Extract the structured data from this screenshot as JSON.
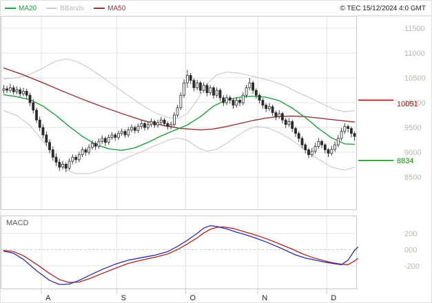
{
  "legend": {
    "ma20_label": "MA20",
    "bbands_label": "BBands",
    "ma50_label": "MA50"
  },
  "copyright": "© TEC 15/12/2024 4:0 GMT",
  "colors": {
    "ma20": "#1fa03c",
    "ma50": "#993333",
    "bbands": "#cccccc",
    "candle": "#2b2b2b",
    "grid": "#e3e3e3",
    "frame": "#c9c9c9",
    "zero_line": "#c9c9c9",
    "axis_label": "#b9b6aa",
    "month_label": "#222222",
    "macd_line": "#2a2ab0",
    "macd_signal": "#aa2222",
    "level_red": "#cc0000",
    "level_green": "#009900"
  },
  "levels": {
    "red": {
      "value": 10051,
      "label": "10051"
    },
    "green": {
      "value": 8834,
      "label": "8834"
    }
  },
  "chart_data": {
    "type": "candlestick",
    "title": "",
    "x_axis": {
      "labels": [
        "A",
        "S",
        "O",
        "N",
        "D"
      ],
      "month_start_indices": [
        12,
        35,
        56,
        78,
        99
      ],
      "total": 108
    },
    "price_panel": {
      "ylim": [
        7850,
        11750
      ],
      "yticks": [
        8500,
        9000,
        9500,
        10000,
        10500,
        11000,
        11500
      ],
      "ytick_labels": [
        "8500",
        "9000",
        "9500",
        "10000",
        "10500",
        "11000",
        "11500"
      ]
    },
    "candles": [
      [
        10250,
        10360,
        10180,
        10280
      ],
      [
        10280,
        10340,
        10190,
        10250
      ],
      [
        10250,
        10380,
        10200,
        10300
      ],
      [
        10300,
        10350,
        10160,
        10220
      ],
      [
        10220,
        10330,
        10170,
        10260
      ],
      [
        10260,
        10310,
        10120,
        10180
      ],
      [
        10180,
        10300,
        10130,
        10230
      ],
      [
        10230,
        10280,
        10080,
        10150
      ],
      [
        10150,
        10200,
        9930,
        10000
      ],
      [
        10000,
        10070,
        9780,
        9850
      ],
      [
        9850,
        9900,
        9590,
        9650
      ],
      [
        9650,
        9720,
        9430,
        9500
      ],
      [
        9500,
        9560,
        9280,
        9350
      ],
      [
        9350,
        9420,
        9130,
        9200
      ],
      [
        9200,
        9260,
        8980,
        9050
      ],
      [
        9050,
        9120,
        8830,
        8900
      ],
      [
        8900,
        8980,
        8720,
        8800
      ],
      [
        8800,
        8870,
        8620,
        8700
      ],
      [
        8700,
        8830,
        8650,
        8760
      ],
      [
        8760,
        8800,
        8600,
        8680
      ],
      [
        8680,
        8880,
        8640,
        8820
      ],
      [
        8820,
        8960,
        8760,
        8900
      ],
      [
        8900,
        8950,
        8780,
        8850
      ],
      [
        8850,
        9010,
        8800,
        8950
      ],
      [
        8950,
        9110,
        8900,
        9050
      ],
      [
        9050,
        9090,
        8930,
        9000
      ],
      [
        9000,
        9160,
        8950,
        9100
      ],
      [
        9100,
        9240,
        9050,
        9180
      ],
      [
        9180,
        9220,
        9050,
        9120
      ],
      [
        9120,
        9280,
        9070,
        9220
      ],
      [
        9220,
        9340,
        9170,
        9280
      ],
      [
        9280,
        9320,
        9130,
        9200
      ],
      [
        9200,
        9360,
        9150,
        9300
      ],
      [
        9300,
        9410,
        9250,
        9350
      ],
      [
        9350,
        9390,
        9230,
        9300
      ],
      [
        9300,
        9440,
        9250,
        9380
      ],
      [
        9380,
        9480,
        9330,
        9420
      ],
      [
        9420,
        9460,
        9290,
        9350
      ],
      [
        9350,
        9510,
        9300,
        9450
      ],
      [
        9450,
        9560,
        9400,
        9500
      ],
      [
        9500,
        9540,
        9380,
        9440
      ],
      [
        9440,
        9580,
        9390,
        9520
      ],
      [
        9520,
        9640,
        9470,
        9580
      ],
      [
        9580,
        9620,
        9440,
        9500
      ],
      [
        9500,
        9620,
        9450,
        9560
      ],
      [
        9560,
        9680,
        9510,
        9620
      ],
      [
        9620,
        9660,
        9490,
        9550
      ],
      [
        9550,
        9660,
        9500,
        9600
      ],
      [
        9600,
        9710,
        9550,
        9650
      ],
      [
        9650,
        9690,
        9520,
        9580
      ],
      [
        9580,
        9620,
        9460,
        9520
      ],
      [
        9520,
        9620,
        9470,
        9560
      ],
      [
        9560,
        9810,
        9510,
        9750
      ],
      [
        9750,
        9960,
        9700,
        9900
      ],
      [
        9900,
        10210,
        9850,
        10150
      ],
      [
        10150,
        10470,
        10100,
        10400
      ],
      [
        10400,
        10660,
        10300,
        10550
      ],
      [
        10550,
        10600,
        10380,
        10450
      ],
      [
        10450,
        10490,
        10230,
        10300
      ],
      [
        10300,
        10460,
        10250,
        10400
      ],
      [
        10400,
        10440,
        10180,
        10250
      ],
      [
        10250,
        10410,
        10200,
        10350
      ],
      [
        10350,
        10390,
        10130,
        10200
      ],
      [
        10200,
        10360,
        10150,
        10300
      ],
      [
        10300,
        10340,
        10080,
        10150
      ],
      [
        10150,
        10310,
        10100,
        10250
      ],
      [
        10250,
        10290,
        10030,
        10100
      ],
      [
        10100,
        10150,
        9930,
        10000
      ],
      [
        10000,
        10160,
        9950,
        10100
      ],
      [
        10100,
        10140,
        9980,
        10050
      ],
      [
        10050,
        10090,
        9880,
        9950
      ],
      [
        9950,
        10110,
        9900,
        10050
      ],
      [
        10050,
        10090,
        9930,
        10000
      ],
      [
        10000,
        10210,
        9950,
        10150
      ],
      [
        10150,
        10360,
        10100,
        10300
      ],
      [
        10300,
        10500,
        10250,
        10400
      ],
      [
        10400,
        10440,
        10180,
        10250
      ],
      [
        10250,
        10290,
        10080,
        10150
      ],
      [
        10150,
        10190,
        9980,
        10050
      ],
      [
        10050,
        10090,
        9880,
        9950
      ],
      [
        9950,
        9990,
        9810,
        9880
      ],
      [
        9880,
        9990,
        9830,
        9920
      ],
      [
        9920,
        9960,
        9730,
        9800
      ],
      [
        9800,
        9840,
        9650,
        9720
      ],
      [
        9720,
        9850,
        9670,
        9780
      ],
      [
        9780,
        9820,
        9580,
        9650
      ],
      [
        9650,
        9690,
        9490,
        9560
      ],
      [
        9560,
        9690,
        9510,
        9620
      ],
      [
        9620,
        9660,
        9410,
        9480
      ],
      [
        9480,
        9520,
        9310,
        9380
      ],
      [
        9380,
        9420,
        9210,
        9280
      ],
      [
        9280,
        9320,
        9080,
        9150
      ],
      [
        9150,
        9190,
        8980,
        9050
      ],
      [
        9050,
        9090,
        8880,
        8950
      ],
      [
        8950,
        9090,
        8900,
        9020
      ],
      [
        9020,
        9190,
        8970,
        9120
      ],
      [
        9120,
        9290,
        9070,
        9220
      ],
      [
        9220,
        9260,
        9080,
        9150
      ],
      [
        9150,
        9190,
        8980,
        9050
      ],
      [
        9050,
        9090,
        8900,
        8980
      ],
      [
        8980,
        9130,
        8930,
        9060
      ],
      [
        9060,
        9220,
        9010,
        9150
      ],
      [
        9150,
        9350,
        9100,
        9280
      ],
      [
        9280,
        9490,
        9230,
        9420
      ],
      [
        9420,
        9590,
        9370,
        9520
      ],
      [
        9520,
        9560,
        9400,
        9480
      ],
      [
        9480,
        9520,
        9300,
        9380
      ],
      [
        9380,
        9420,
        9230,
        9320
      ]
    ],
    "overlays": {
      "ma20": [
        [
          0,
          10160
        ],
        [
          4,
          10120
        ],
        [
          8,
          10060
        ],
        [
          12,
          9930
        ],
        [
          16,
          9740
        ],
        [
          20,
          9520
        ],
        [
          24,
          9320
        ],
        [
          28,
          9160
        ],
        [
          32,
          9070
        ],
        [
          36,
          9040
        ],
        [
          40,
          9090
        ],
        [
          44,
          9200
        ],
        [
          48,
          9330
        ],
        [
          52,
          9440
        ],
        [
          56,
          9550
        ],
        [
          60,
          9720
        ],
        [
          64,
          9930
        ],
        [
          68,
          10060
        ],
        [
          72,
          10110
        ],
        [
          76,
          10130
        ],
        [
          80,
          10110
        ],
        [
          84,
          10040
        ],
        [
          88,
          9890
        ],
        [
          92,
          9700
        ],
        [
          96,
          9480
        ],
        [
          100,
          9290
        ],
        [
          104,
          9170
        ],
        [
          107,
          9160
        ]
      ],
      "ma50": [
        [
          0,
          10700
        ],
        [
          6,
          10560
        ],
        [
          12,
          10400
        ],
        [
          18,
          10230
        ],
        [
          24,
          10070
        ],
        [
          30,
          9920
        ],
        [
          36,
          9780
        ],
        [
          42,
          9650
        ],
        [
          48,
          9550
        ],
        [
          54,
          9480
        ],
        [
          60,
          9450
        ],
        [
          64,
          9470
        ],
        [
          68,
          9520
        ],
        [
          72,
          9580
        ],
        [
          76,
          9640
        ],
        [
          80,
          9690
        ],
        [
          84,
          9720
        ],
        [
          88,
          9730
        ],
        [
          92,
          9720
        ],
        [
          96,
          9690
        ],
        [
          100,
          9660
        ],
        [
          104,
          9630
        ],
        [
          107,
          9610
        ]
      ],
      "bb_upper": [
        [
          0,
          10480
        ],
        [
          4,
          10500
        ],
        [
          8,
          10570
        ],
        [
          12,
          10700
        ],
        [
          16,
          10840
        ],
        [
          19,
          10880
        ],
        [
          22,
          10840
        ],
        [
          26,
          10700
        ],
        [
          30,
          10520
        ],
        [
          34,
          10330
        ],
        [
          38,
          10140
        ],
        [
          42,
          9960
        ],
        [
          46,
          9800
        ],
        [
          50,
          9700
        ],
        [
          53,
          9680
        ],
        [
          56,
          9780
        ],
        [
          59,
          10050
        ],
        [
          62,
          10380
        ],
        [
          65,
          10560
        ],
        [
          68,
          10620
        ],
        [
          71,
          10600
        ],
        [
          74,
          10560
        ],
        [
          78,
          10500
        ],
        [
          82,
          10430
        ],
        [
          86,
          10330
        ],
        [
          90,
          10200
        ],
        [
          94,
          10080
        ],
        [
          98,
          9950
        ],
        [
          101,
          9860
        ],
        [
          104,
          9820
        ],
        [
          107,
          9840
        ]
      ],
      "bb_lower": [
        [
          0,
          9840
        ],
        [
          4,
          9740
        ],
        [
          8,
          9540
        ],
        [
          12,
          9230
        ],
        [
          16,
          8880
        ],
        [
          19,
          8650
        ],
        [
          22,
          8570
        ],
        [
          26,
          8570
        ],
        [
          30,
          8650
        ],
        [
          34,
          8780
        ],
        [
          38,
          8900
        ],
        [
          42,
          9010
        ],
        [
          46,
          9130
        ],
        [
          50,
          9240
        ],
        [
          53,
          9290
        ],
        [
          56,
          9240
        ],
        [
          59,
          9100
        ],
        [
          62,
          9020
        ],
        [
          65,
          9060
        ],
        [
          68,
          9180
        ],
        [
          71,
          9320
        ],
        [
          74,
          9450
        ],
        [
          77,
          9520
        ],
        [
          80,
          9500
        ],
        [
          84,
          9400
        ],
        [
          88,
          9240
        ],
        [
          92,
          9050
        ],
        [
          96,
          8860
        ],
        [
          100,
          8700
        ],
        [
          104,
          8640
        ],
        [
          107,
          8700
        ]
      ]
    },
    "macd_panel": {
      "label": "MACD",
      "ylim": [
        -480,
        420
      ],
      "yticks": [
        200,
        0,
        -200
      ],
      "ytick_labels": [
        "200",
        "000",
        "-200"
      ],
      "macd": [
        [
          0,
          -20
        ],
        [
          3,
          -45
        ],
        [
          6,
          -120
        ],
        [
          10,
          -260
        ],
        [
          14,
          -380
        ],
        [
          17,
          -430
        ],
        [
          20,
          -425
        ],
        [
          23,
          -380
        ],
        [
          26,
          -320
        ],
        [
          30,
          -245
        ],
        [
          34,
          -180
        ],
        [
          38,
          -130
        ],
        [
          42,
          -100
        ],
        [
          46,
          -70
        ],
        [
          50,
          -25
        ],
        [
          53,
          40
        ],
        [
          56,
          115
        ],
        [
          59,
          200
        ],
        [
          61,
          265
        ],
        [
          63,
          295
        ],
        [
          65,
          285
        ],
        [
          68,
          255
        ],
        [
          71,
          215
        ],
        [
          74,
          180
        ],
        [
          77,
          140
        ],
        [
          80,
          95
        ],
        [
          83,
          45
        ],
        [
          86,
          -10
        ],
        [
          89,
          -65
        ],
        [
          92,
          -105
        ],
        [
          95,
          -130
        ],
        [
          98,
          -155
        ],
        [
          101,
          -175
        ],
        [
          103,
          -185
        ],
        [
          105,
          -130
        ],
        [
          107,
          -10
        ],
        [
          108,
          30
        ]
      ],
      "signal": [
        [
          0,
          -10
        ],
        [
          3,
          -25
        ],
        [
          6,
          -75
        ],
        [
          10,
          -180
        ],
        [
          14,
          -295
        ],
        [
          17,
          -370
        ],
        [
          20,
          -405
        ],
        [
          23,
          -400
        ],
        [
          26,
          -360
        ],
        [
          30,
          -295
        ],
        [
          34,
          -230
        ],
        [
          38,
          -170
        ],
        [
          42,
          -130
        ],
        [
          46,
          -95
        ],
        [
          50,
          -55
        ],
        [
          53,
          0
        ],
        [
          56,
          70
        ],
        [
          59,
          145
        ],
        [
          61,
          205
        ],
        [
          63,
          250
        ],
        [
          65,
          275
        ],
        [
          67,
          280
        ],
        [
          70,
          260
        ],
        [
          73,
          225
        ],
        [
          76,
          190
        ],
        [
          79,
          150
        ],
        [
          82,
          105
        ],
        [
          85,
          55
        ],
        [
          88,
          5
        ],
        [
          91,
          -50
        ],
        [
          94,
          -95
        ],
        [
          97,
          -130
        ],
        [
          100,
          -160
        ],
        [
          103,
          -180
        ],
        [
          105,
          -185
        ],
        [
          107,
          -140
        ],
        [
          108,
          -110
        ]
      ]
    }
  }
}
